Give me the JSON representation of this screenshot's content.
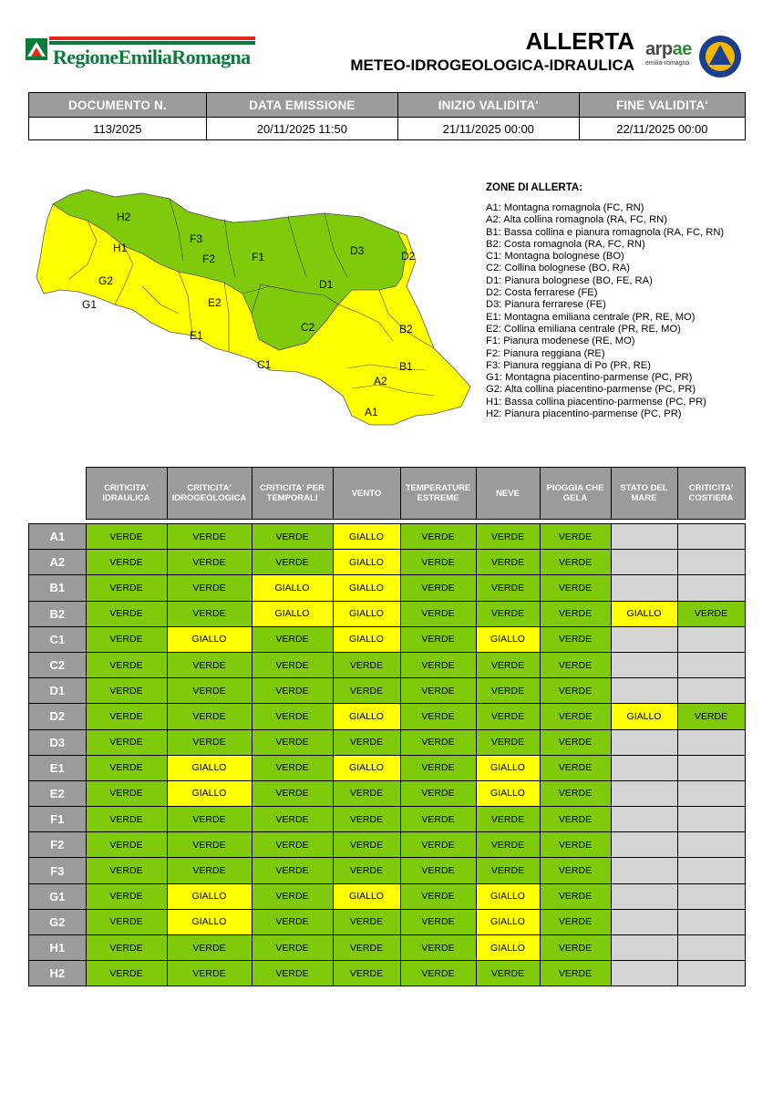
{
  "header": {
    "org_name": "RegioneEmiliaRomagna",
    "title": "ALLERTA",
    "subtitle": "METEO-IDROGEOLOGICA-IDRAULICA",
    "arpae_a": "arp",
    "arpae_b": "ae",
    "arpae_sub": "emilia-romagna"
  },
  "doc_info": {
    "headers": [
      "DOCUMENTO N.",
      "DATA EMISSIONE",
      "INIZIO VALIDITA'",
      "FINE VALIDITA'"
    ],
    "values": [
      "113/2025",
      "20/11/2025 11:50",
      "21/11/2025 00:00",
      "22/11/2025 00:00"
    ]
  },
  "map_labels": {
    "H2": "H2",
    "H1": "H1",
    "G2": "G2",
    "G1": "G1",
    "F3": "F3",
    "F2": "F2",
    "F1": "F1",
    "E2": "E2",
    "E1": "E1",
    "D3": "D3",
    "D2": "D2",
    "D1": "D1",
    "C2": "C2",
    "C1": "C1",
    "B2": "B2",
    "B1": "B1",
    "A2": "A2",
    "A1": "A1"
  },
  "legend": {
    "title": "ZONE DI ALLERTA:",
    "items": [
      "A1: Montagna romagnola (FC, RN)",
      "A2: Alta collina romagnola (RA, FC, RN)",
      "B1: Bassa collina e pianura romagnola (RA, FC, RN)",
      "B2: Costa romagnola (RA, FC, RN)",
      "C1: Montagna bolognese (BO)",
      "C2: Collina bolognese (BO, RA)",
      "D1: Pianura bolognese (BO, FE, RA)",
      "D2: Costa ferrarese (FE)",
      "D3: Pianura ferrarese (FE)",
      "E1: Montagna emiliana centrale (PR, RE, MO)",
      "E2: Collina emiliana centrale (PR, RE, MO)",
      "F1: Pianura modenese (RE, MO)",
      "F2: Pianura reggiana (RE)",
      "F3: Pianura reggiana di Po (PR, RE)",
      "G1: Montagna piacentino-parmense (PC, PR)",
      "G2: Alta collina piacentino-parmense (PC, PR)",
      "H1: Bassa collina piacentino-parmense (PC, PR)",
      "H2: Pianura piacentino-parmense (PC, PR)"
    ]
  },
  "colors": {
    "verde": "#7fcb0b",
    "giallo": "#ffff00",
    "na": "#d4d4d4",
    "header": "#9b9b9b"
  },
  "table": {
    "headers": [
      "CRITICITA' IDRAULICA",
      "CRITICITA' IDROGEOLOGICA",
      "CRITICITA' PER TEMPORALI",
      "VENTO",
      "TEMPERATURE ESTREME",
      "NEVE",
      "PIOGGIA CHE GELA",
      "STATO DEL MARE",
      "CRITICITA' COSTIERA"
    ],
    "rows": [
      {
        "zone": "A1",
        "cells": [
          "VERDE",
          "VERDE",
          "VERDE",
          "GIALLO",
          "VERDE",
          "VERDE",
          "VERDE",
          "",
          ""
        ]
      },
      {
        "zone": "A2",
        "cells": [
          "VERDE",
          "VERDE",
          "VERDE",
          "GIALLO",
          "VERDE",
          "VERDE",
          "VERDE",
          "",
          ""
        ]
      },
      {
        "zone": "B1",
        "cells": [
          "VERDE",
          "VERDE",
          "GIALLO",
          "GIALLO",
          "VERDE",
          "VERDE",
          "VERDE",
          "",
          ""
        ]
      },
      {
        "zone": "B2",
        "cells": [
          "VERDE",
          "VERDE",
          "GIALLO",
          "GIALLO",
          "VERDE",
          "VERDE",
          "VERDE",
          "GIALLO",
          "VERDE"
        ]
      },
      {
        "zone": "C1",
        "cells": [
          "VERDE",
          "GIALLO",
          "VERDE",
          "GIALLO",
          "VERDE",
          "GIALLO",
          "VERDE",
          "",
          ""
        ]
      },
      {
        "zone": "C2",
        "cells": [
          "VERDE",
          "VERDE",
          "VERDE",
          "VERDE",
          "VERDE",
          "VERDE",
          "VERDE",
          "",
          ""
        ]
      },
      {
        "zone": "D1",
        "cells": [
          "VERDE",
          "VERDE",
          "VERDE",
          "VERDE",
          "VERDE",
          "VERDE",
          "VERDE",
          "",
          ""
        ]
      },
      {
        "zone": "D2",
        "cells": [
          "VERDE",
          "VERDE",
          "VERDE",
          "GIALLO",
          "VERDE",
          "VERDE",
          "VERDE",
          "GIALLO",
          "VERDE"
        ]
      },
      {
        "zone": "D3",
        "cells": [
          "VERDE",
          "VERDE",
          "VERDE",
          "VERDE",
          "VERDE",
          "VERDE",
          "VERDE",
          "",
          ""
        ]
      },
      {
        "zone": "E1",
        "cells": [
          "VERDE",
          "GIALLO",
          "VERDE",
          "GIALLO",
          "VERDE",
          "GIALLO",
          "VERDE",
          "",
          ""
        ]
      },
      {
        "zone": "E2",
        "cells": [
          "VERDE",
          "GIALLO",
          "VERDE",
          "VERDE",
          "VERDE",
          "GIALLO",
          "VERDE",
          "",
          ""
        ]
      },
      {
        "zone": "F1",
        "cells": [
          "VERDE",
          "VERDE",
          "VERDE",
          "VERDE",
          "VERDE",
          "VERDE",
          "VERDE",
          "",
          ""
        ]
      },
      {
        "zone": "F2",
        "cells": [
          "VERDE",
          "VERDE",
          "VERDE",
          "VERDE",
          "VERDE",
          "VERDE",
          "VERDE",
          "",
          ""
        ]
      },
      {
        "zone": "F3",
        "cells": [
          "VERDE",
          "VERDE",
          "VERDE",
          "VERDE",
          "VERDE",
          "VERDE",
          "VERDE",
          "",
          ""
        ]
      },
      {
        "zone": "G1",
        "cells": [
          "VERDE",
          "GIALLO",
          "VERDE",
          "GIALLO",
          "VERDE",
          "GIALLO",
          "VERDE",
          "",
          ""
        ]
      },
      {
        "zone": "G2",
        "cells": [
          "VERDE",
          "GIALLO",
          "VERDE",
          "VERDE",
          "VERDE",
          "GIALLO",
          "VERDE",
          "",
          ""
        ]
      },
      {
        "zone": "H1",
        "cells": [
          "VERDE",
          "VERDE",
          "VERDE",
          "VERDE",
          "VERDE",
          "GIALLO",
          "VERDE",
          "",
          ""
        ]
      },
      {
        "zone": "H2",
        "cells": [
          "VERDE",
          "VERDE",
          "VERDE",
          "VERDE",
          "VERDE",
          "VERDE",
          "VERDE",
          "",
          ""
        ]
      }
    ]
  }
}
